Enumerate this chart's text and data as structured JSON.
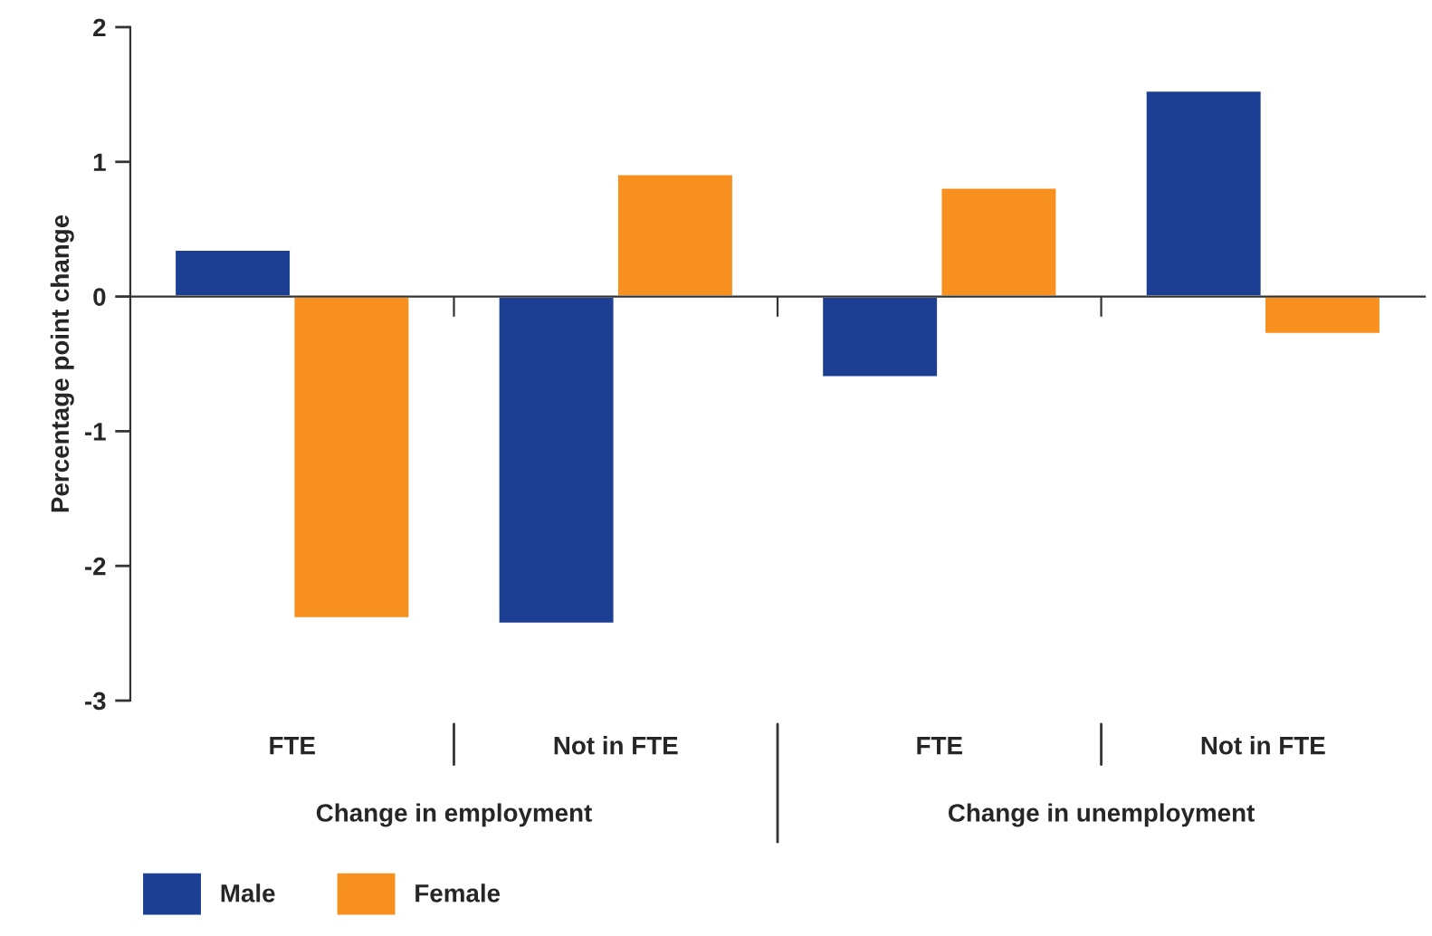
{
  "chart_data": {
    "type": "bar",
    "ylabel": "Percentage point change",
    "categories": [
      "FTE",
      "Not in FTE",
      "FTE",
      "Not in FTE"
    ],
    "series": [
      {
        "name": "Male",
        "color": "#1c3f94",
        "values": [
          0.35,
          -2.43,
          -0.6,
          1.53
        ]
      },
      {
        "name": "Female",
        "color": "#f7901e",
        "values": [
          -2.39,
          0.91,
          0.81,
          -0.28
        ]
      }
    ],
    "ylim": [
      -3,
      2
    ],
    "yticks": [
      {
        "value": -3,
        "label": "-3"
      },
      {
        "value": -2,
        "label": "-2"
      },
      {
        "value": -1,
        "label": "-1"
      },
      0,
      1,
      2
    ],
    "annotations": [
      "Change in employment",
      "Change in unemployment"
    ],
    "legend": "bottom"
  }
}
